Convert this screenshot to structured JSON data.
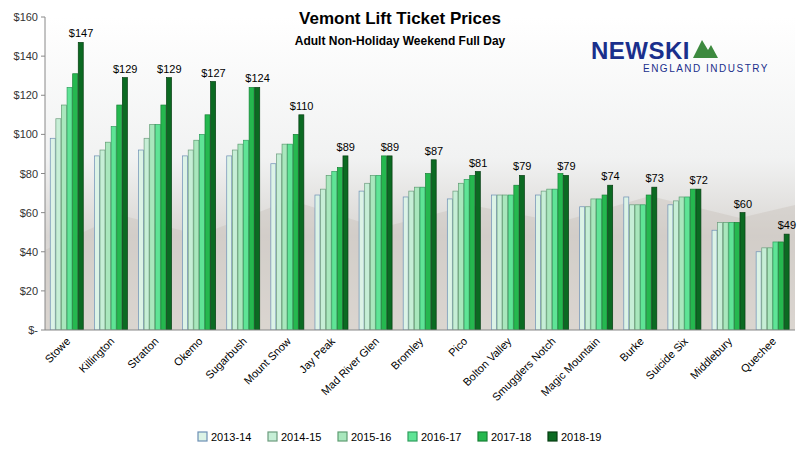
{
  "chart_data": {
    "type": "bar",
    "title": "Vemont Lift Ticket Prices",
    "subtitle": "Adult Non-Holiday Weekend Full Day",
    "annotations": [
      "NEWSKI",
      "ENGLAND INDUSTRY"
    ],
    "categories": [
      "Stowe",
      "Killington",
      "Stratton",
      "Okemo",
      "Sugarbush",
      "Mount Snow",
      "Jay Peak",
      "Mad River Glen",
      "Bromley",
      "Pico",
      "Bolton Valley",
      "Smugglers Notch",
      "Magic Mountain",
      "Burke",
      "Suicide Six",
      "Middlebury",
      "Quechee"
    ],
    "series": [
      {
        "name": "2013-14",
        "color": "#dcf3e6",
        "values": [
          98,
          89,
          92,
          89,
          89,
          85,
          69,
          71,
          68,
          67,
          69,
          69,
          63,
          68,
          64,
          51,
          40
        ]
      },
      {
        "name": "2014-15",
        "color": "#c6eed6",
        "values": [
          108,
          92,
          98,
          92,
          92,
          90,
          72,
          75,
          71,
          71,
          69,
          71,
          63,
          64,
          66,
          55,
          42
        ]
      },
      {
        "name": "2015-16",
        "color": "#a9e7bd",
        "values": [
          115,
          96,
          105,
          97,
          95,
          95,
          79,
          79,
          73,
          75,
          69,
          72,
          67,
          64,
          68,
          55,
          42
        ]
      },
      {
        "name": "2016-17",
        "color": "#5fe496",
        "values": [
          124,
          104,
          105,
          100,
          97,
          95,
          81,
          79,
          73,
          77,
          69,
          72,
          67,
          64,
          68,
          55,
          45
        ]
      },
      {
        "name": "2017-18",
        "color": "#25b84f",
        "values": [
          131,
          115,
          115,
          110,
          124,
          100,
          83,
          89,
          80,
          79,
          74,
          80,
          69,
          69,
          72,
          55,
          45
        ]
      },
      {
        "name": "2018-19",
        "color": "#0b6a22",
        "values": [
          147,
          129,
          129,
          127,
          124,
          110,
          89,
          89,
          87,
          81,
          79,
          79,
          74,
          73,
          72,
          60,
          49
        ],
        "value_labels": [
          "$147",
          "$129",
          "$129",
          "$127",
          "$124",
          "$110",
          "$89",
          "$89",
          "$87",
          "$81",
          "$79",
          "$79",
          "$74",
          "$73",
          "$72",
          "$60",
          "$49"
        ]
      }
    ],
    "ylim": [
      0,
      160
    ],
    "yticks": [
      {
        "value": 0,
        "label": "$-"
      },
      {
        "value": 20,
        "label": "$20"
      },
      {
        "value": 40,
        "label": "$40"
      },
      {
        "value": 60,
        "label": "$60"
      },
      {
        "value": 80,
        "label": "$80"
      },
      {
        "value": 100,
        "label": "$100"
      },
      {
        "value": 120,
        "label": "$120"
      },
      {
        "value": 140,
        "label": "$140"
      },
      {
        "value": 160,
        "label": "$160"
      }
    ],
    "grid": false,
    "legend": "bottom",
    "data_labels": true
  }
}
